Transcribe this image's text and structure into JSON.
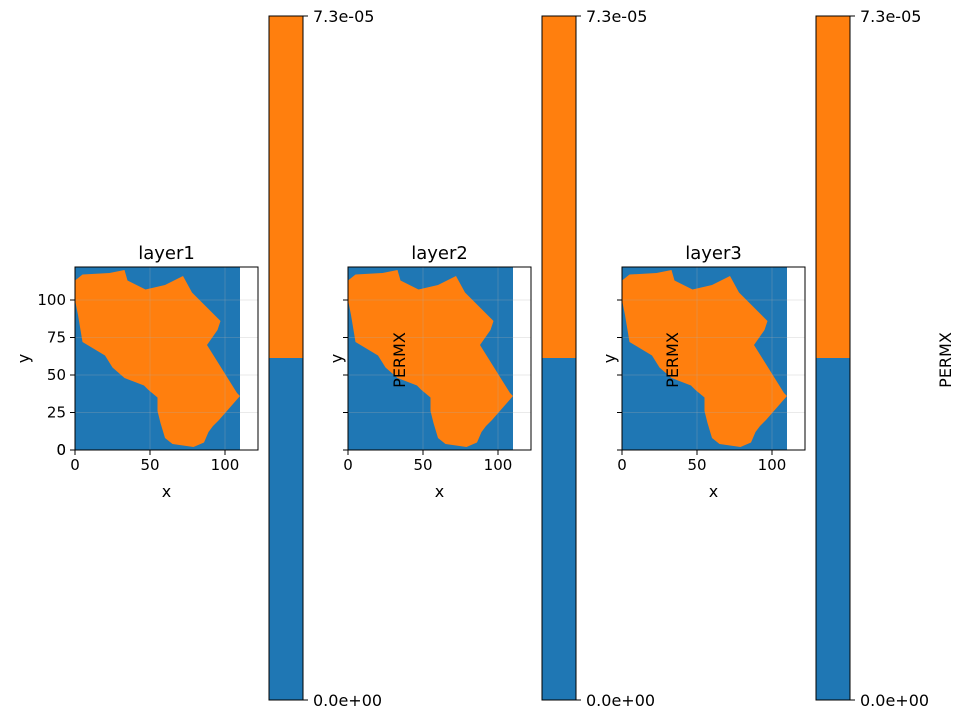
{
  "chart_data": [
    {
      "type": "heatmap",
      "title": "layer1",
      "xlabel": "x",
      "ylabel": "y",
      "xlim": [
        0,
        122
      ],
      "ylim": [
        0,
        122
      ],
      "data_extent_x": [
        0,
        110
      ],
      "xticks": [
        0,
        50,
        100
      ],
      "yticks": [
        0,
        25,
        50,
        75,
        100
      ],
      "categories": [
        {
          "value": "0.0e+00",
          "color": "#1f77b4"
        },
        {
          "value": "7.3e-05",
          "color": "#ff7f0e"
        }
      ],
      "region_value1_outline": [
        [
          0,
          113
        ],
        [
          5,
          117
        ],
        [
          23,
          118
        ],
        [
          33,
          120
        ],
        [
          35,
          113
        ],
        [
          47,
          107
        ],
        [
          60,
          110
        ],
        [
          72,
          116
        ],
        [
          78,
          105
        ],
        [
          97,
          86
        ],
        [
          95,
          80
        ],
        [
          88,
          70
        ],
        [
          108,
          38
        ],
        [
          110,
          36
        ],
        [
          103,
          28
        ],
        [
          96,
          20
        ],
        [
          92,
          16
        ],
        [
          89,
          12
        ],
        [
          86,
          5
        ],
        [
          79,
          2
        ],
        [
          65,
          4
        ],
        [
          60,
          8
        ],
        [
          57,
          18
        ],
        [
          55,
          26
        ],
        [
          55,
          35
        ],
        [
          49,
          40
        ],
        [
          46,
          43
        ],
        [
          33,
          48
        ],
        [
          25,
          55
        ],
        [
          20,
          63
        ],
        [
          5,
          72
        ],
        [
          2,
          90
        ],
        [
          0,
          100
        ]
      ],
      "colorbar": {
        "label": "",
        "ticks": [
          "0.0e+00",
          "7.3e-05"
        ],
        "split_fraction": 0.5
      }
    },
    {
      "type": "heatmap",
      "title": "layer2",
      "xlabel": "x",
      "ylabel": "y",
      "xlim": [
        0,
        122
      ],
      "ylim": [
        0,
        122
      ],
      "data_extent_x": [
        0,
        110
      ],
      "xticks": [
        0,
        50,
        100
      ],
      "yticks": [
        0,
        25,
        50,
        75,
        100
      ],
      "categories": [
        {
          "value": "0.0e+00",
          "color": "#1f77b4"
        },
        {
          "value": "7.3e-05",
          "color": "#ff7f0e"
        }
      ],
      "region_value1_outline": [
        [
          0,
          113
        ],
        [
          5,
          117
        ],
        [
          23,
          118
        ],
        [
          33,
          120
        ],
        [
          35,
          113
        ],
        [
          47,
          107
        ],
        [
          60,
          110
        ],
        [
          72,
          116
        ],
        [
          78,
          105
        ],
        [
          97,
          86
        ],
        [
          95,
          80
        ],
        [
          88,
          70
        ],
        [
          108,
          38
        ],
        [
          110,
          36
        ],
        [
          103,
          28
        ],
        [
          96,
          20
        ],
        [
          92,
          16
        ],
        [
          89,
          12
        ],
        [
          86,
          5
        ],
        [
          79,
          2
        ],
        [
          65,
          4
        ],
        [
          60,
          8
        ],
        [
          57,
          18
        ],
        [
          55,
          26
        ],
        [
          55,
          35
        ],
        [
          49,
          40
        ],
        [
          46,
          43
        ],
        [
          33,
          48
        ],
        [
          25,
          55
        ],
        [
          20,
          63
        ],
        [
          5,
          72
        ],
        [
          2,
          90
        ],
        [
          0,
          100
        ]
      ],
      "colorbar": {
        "label": "PERMX",
        "ticks": [
          "0.0e+00",
          "7.3e-05"
        ],
        "split_fraction": 0.5
      }
    },
    {
      "type": "heatmap",
      "title": "layer3",
      "xlabel": "x",
      "ylabel": "y",
      "xlim": [
        0,
        122
      ],
      "ylim": [
        0,
        122
      ],
      "data_extent_x": [
        0,
        110
      ],
      "xticks": [
        0,
        50,
        100
      ],
      "yticks": [
        0,
        25,
        50,
        75,
        100
      ],
      "categories": [
        {
          "value": "0.0e+00",
          "color": "#1f77b4"
        },
        {
          "value": "7.3e-05",
          "color": "#ff7f0e"
        }
      ],
      "region_value1_outline": [
        [
          0,
          113
        ],
        [
          5,
          117
        ],
        [
          23,
          118
        ],
        [
          33,
          120
        ],
        [
          35,
          113
        ],
        [
          47,
          107
        ],
        [
          60,
          110
        ],
        [
          72,
          116
        ],
        [
          78,
          105
        ],
        [
          97,
          86
        ],
        [
          95,
          80
        ],
        [
          88,
          70
        ],
        [
          108,
          38
        ],
        [
          110,
          36
        ],
        [
          103,
          28
        ],
        [
          96,
          20
        ],
        [
          92,
          16
        ],
        [
          89,
          12
        ],
        [
          86,
          5
        ],
        [
          79,
          2
        ],
        [
          65,
          4
        ],
        [
          60,
          8
        ],
        [
          57,
          18
        ],
        [
          55,
          26
        ],
        [
          55,
          35
        ],
        [
          49,
          40
        ],
        [
          46,
          43
        ],
        [
          33,
          48
        ],
        [
          25,
          55
        ],
        [
          20,
          63
        ],
        [
          5,
          72
        ],
        [
          2,
          90
        ],
        [
          0,
          100
        ]
      ],
      "colorbar": {
        "label": "PERMX",
        "ticks": [
          "0.0e+00",
          "7.3e-05"
        ],
        "split_fraction": 0.5
      }
    }
  ]
}
